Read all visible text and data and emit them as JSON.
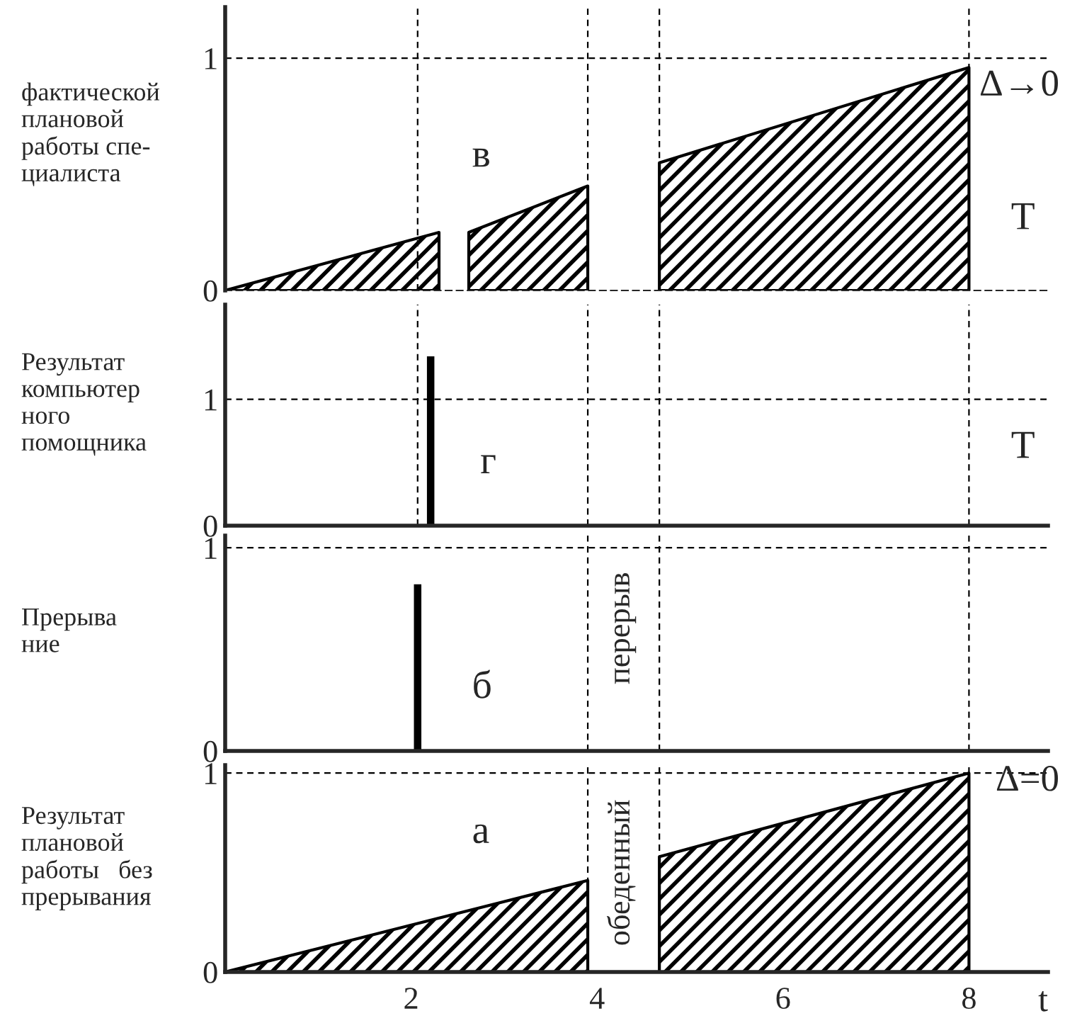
{
  "chart_data": [
    {
      "type": "area",
      "ylabel": "фактической\nплановой\nработы спе-\nциалиста",
      "xlim": [
        0,
        8.85
      ],
      "ylim": [
        0,
        1.22
      ],
      "yticks": [
        0,
        1
      ],
      "tick_labels": "y",
      "grid": false,
      "legend": false,
      "series": [
        {
          "x": [
            0,
            2.3
          ],
          "values": [
            0,
            0.25
          ],
          "color": "#000000"
        },
        {
          "x": [
            2.62,
            3.9
          ],
          "values": [
            0.25,
            0.45
          ],
          "color": "#000000"
        },
        {
          "x": [
            4.67,
            8
          ],
          "values": [
            0.55,
            0.96
          ],
          "color": "#000000"
        }
      ],
      "ref_lines": [
        {
          "axis": "y",
          "value": 1,
          "line_style": "dashed"
        },
        {
          "axis": "x",
          "value": 2.07,
          "line_style": "dashed"
        },
        {
          "axis": "x",
          "value": 3.9,
          "line_style": "dashed"
        },
        {
          "axis": "x",
          "value": 4.67,
          "line_style": "dashed"
        },
        {
          "axis": "x",
          "value": 8,
          "line_style": "dashed"
        }
      ],
      "annotations": [
        "в",
        "Δ→0",
        "T"
      ]
    },
    {
      "type": "bar",
      "ylabel": "Результат\nкомпьютер\nного\nпомощника",
      "xlim": [
        0,
        8.85
      ],
      "ylim": [
        0,
        1.75
      ],
      "yticks": [
        0,
        1
      ],
      "tick_labels": "y",
      "grid": false,
      "legend": false,
      "series": [
        {
          "x": [
            2.21
          ],
          "values": [
            1.34
          ],
          "color": "#000000"
        }
      ],
      "ref_lines": [
        {
          "axis": "y",
          "value": 1,
          "line_style": "dashed"
        },
        {
          "axis": "x",
          "value": 2.07,
          "line_style": "dashed"
        },
        {
          "axis": "x",
          "value": 3.9,
          "line_style": "dashed"
        },
        {
          "axis": "x",
          "value": 4.67,
          "line_style": "dashed"
        },
        {
          "axis": "x",
          "value": 8,
          "line_style": "dashed"
        }
      ],
      "annotations": [
        "г",
        "T"
      ]
    },
    {
      "type": "bar",
      "ylabel": "Прерыва\nние",
      "xlim": [
        0,
        8.85
      ],
      "ylim": [
        0,
        1.06
      ],
      "yticks": [
        0,
        1
      ],
      "tick_labels": "y",
      "grid": false,
      "legend": false,
      "series": [
        {
          "x": [
            2.07
          ],
          "values": [
            0.82
          ],
          "color": "#000000"
        }
      ],
      "ref_lines": [
        {
          "axis": "y",
          "value": 1,
          "line_style": "dashed"
        },
        {
          "axis": "x",
          "value": 3.9,
          "line_style": "dashed"
        },
        {
          "axis": "x",
          "value": 4.67,
          "line_style": "dashed"
        },
        {
          "axis": "x",
          "value": 8,
          "line_style": "dashed"
        }
      ],
      "annotations": [
        "б",
        "перерыв"
      ]
    },
    {
      "type": "area",
      "ylabel": "Результат\nплановой\nработы   без\nпрерывания",
      "xlabel": "t",
      "xlim": [
        0,
        8.85
      ],
      "ylim": [
        0,
        1.04
      ],
      "xticks": [
        2,
        4,
        6,
        8
      ],
      "yticks": [
        0,
        1
      ],
      "grid": false,
      "legend": false,
      "series": [
        {
          "x": [
            0,
            3.9
          ],
          "values": [
            0,
            0.46
          ],
          "color": "#000000"
        },
        {
          "x": [
            4.67,
            8
          ],
          "values": [
            0.58,
            1.0
          ],
          "color": "#000000"
        }
      ],
      "ref_lines": [
        {
          "axis": "y",
          "value": 1,
          "line_style": "dashed"
        },
        {
          "axis": "x",
          "value": 3.9,
          "line_style": "dashed"
        },
        {
          "axis": "x",
          "value": 4.67,
          "line_style": "dashed"
        },
        {
          "axis": "x",
          "value": 8,
          "line_style": "dashed"
        }
      ],
      "annotations": [
        "а",
        "обеденный",
        "Δ=0"
      ]
    }
  ]
}
